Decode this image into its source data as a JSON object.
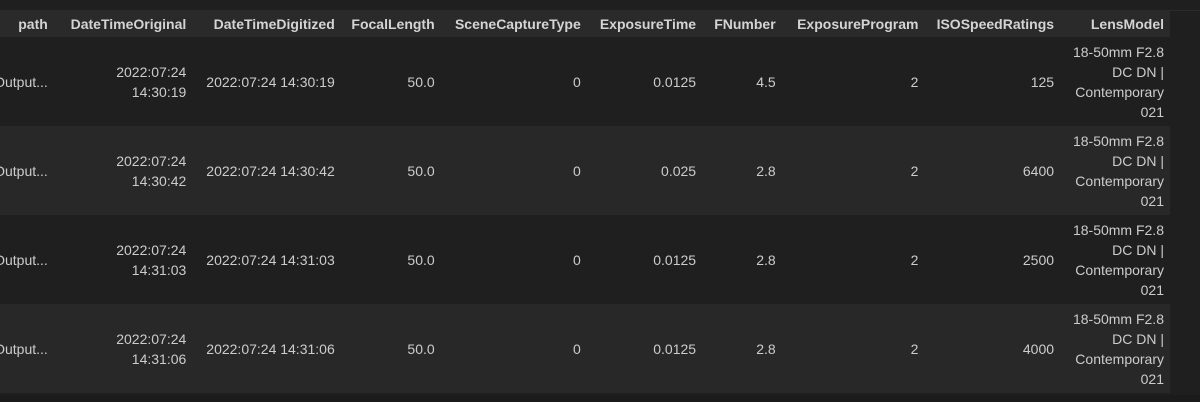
{
  "columns": [
    "path",
    "DateTimeOriginal",
    "DateTimeDigitized",
    "FocalLength",
    "SceneCaptureType",
    "ExposureTime",
    "FNumber",
    "ExposureProgram",
    "ISOSpeedRatings",
    "LensModel"
  ],
  "rows": [
    {
      "path": "Output...",
      "DateTimeOriginal": "2022:07:24 14:30:19",
      "DateTimeDigitized": "2022:07:24 14:30:19",
      "FocalLength": "50.0",
      "SceneCaptureType": "0",
      "ExposureTime": "0.0125",
      "FNumber": "4.5",
      "ExposureProgram": "2",
      "ISOSpeedRatings": "125",
      "LensModel": "18-50mm F2.8 DC DN | Contemporary 021"
    },
    {
      "path": "Output...",
      "DateTimeOriginal": "2022:07:24 14:30:42",
      "DateTimeDigitized": "2022:07:24 14:30:42",
      "FocalLength": "50.0",
      "SceneCaptureType": "0",
      "ExposureTime": "0.025",
      "FNumber": "2.8",
      "ExposureProgram": "2",
      "ISOSpeedRatings": "6400",
      "LensModel": "18-50mm F2.8 DC DN | Contemporary 021"
    },
    {
      "path": "Output...",
      "DateTimeOriginal": "2022:07:24 14:31:03",
      "DateTimeDigitized": "2022:07:24 14:31:03",
      "FocalLength": "50.0",
      "SceneCaptureType": "0",
      "ExposureTime": "0.0125",
      "FNumber": "2.8",
      "ExposureProgram": "2",
      "ISOSpeedRatings": "2500",
      "LensModel": "18-50mm F2.8 DC DN | Contemporary 021"
    },
    {
      "path": "Output...",
      "DateTimeOriginal": "2022:07:24 14:31:06",
      "DateTimeDigitized": "2022:07:24 14:31:06",
      "FocalLength": "50.0",
      "SceneCaptureType": "0",
      "ExposureTime": "0.0125",
      "FNumber": "2.8",
      "ExposureProgram": "2",
      "ISOSpeedRatings": "4000",
      "LensModel": "18-50mm F2.8 DC DN | Contemporary 021"
    }
  ]
}
